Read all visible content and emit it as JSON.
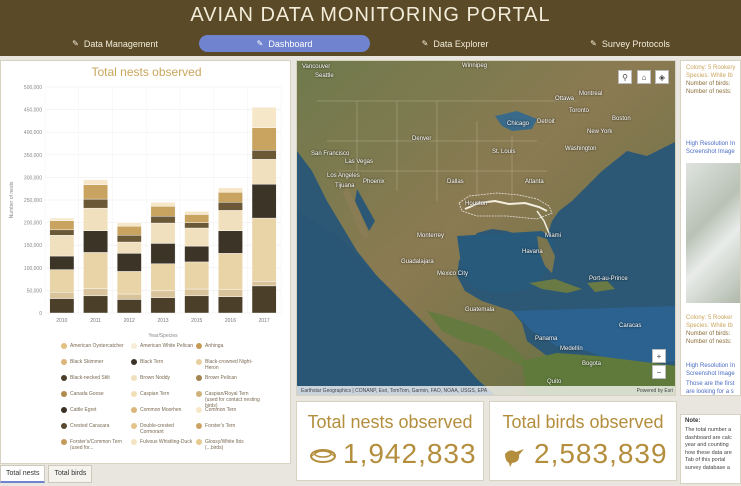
{
  "header": {
    "title": "AVIAN DATA MONITORING PORTAL",
    "nav": [
      {
        "label": "Data Management",
        "icon": "pin-icon"
      },
      {
        "label": "Dashboard",
        "icon": "pencil-icon"
      },
      {
        "label": "Data Explorer",
        "icon": "pin-icon"
      },
      {
        "label": "Survey Protocols",
        "icon": "pin-icon"
      }
    ]
  },
  "chart_data": {
    "type": "bar",
    "title": "Total nests observed",
    "xlabel": "Year/Species",
    "ylabel": "Number of nests",
    "ylim": [
      0,
      500000
    ],
    "yticks": [
      "0",
      "50,000",
      "100,000",
      "150,000",
      "200,000",
      "250,000",
      "300,000",
      "350,000",
      "400,000",
      "450,000",
      "500,000"
    ],
    "categories": [
      "2010",
      "2011",
      "2012",
      "2013",
      "2015",
      "2016",
      "2017"
    ],
    "series_colors": [
      "#4b3f2a",
      "#d8c39a",
      "#e9d4a8",
      "#3d3428",
      "#f1e0bd",
      "#6b5836",
      "#c8a460",
      "#f6e7c9"
    ],
    "series": [
      {
        "values": [
          32000,
          38000,
          30000,
          34000,
          38000,
          36000,
          60000
        ]
      },
      {
        "values": [
          14000,
          16000,
          12000,
          15000,
          15000,
          16000,
          10000
        ]
      },
      {
        "values": [
          50000,
          80000,
          50000,
          60000,
          60000,
          80000,
          140000
        ]
      },
      {
        "values": [
          30000,
          48000,
          40000,
          45000,
          35000,
          50000,
          75000
        ]
      },
      {
        "values": [
          46000,
          50000,
          25000,
          45000,
          40000,
          45000,
          55000
        ]
      },
      {
        "values": [
          12000,
          20000,
          15000,
          15000,
          12000,
          18000,
          20000
        ]
      },
      {
        "values": [
          20000,
          32000,
          20000,
          22000,
          18000,
          22000,
          50000
        ]
      },
      {
        "values": [
          6000,
          11000,
          8000,
          9000,
          7000,
          10000,
          45000
        ]
      }
    ],
    "legend": [
      {
        "label": "American Oystercatcher",
        "color": "#e2c080"
      },
      {
        "label": "American White Pelican",
        "color": "#f6ecd7"
      },
      {
        "label": "Anhinga",
        "color": "#c79a55"
      },
      {
        "label": "Black Skimmer",
        "color": "#dcb57a"
      },
      {
        "label": "Black Tern",
        "color": "#3d3428"
      },
      {
        "label": "Black-crowned Night-Heron",
        "color": "#e7cfa0"
      },
      {
        "label": "Black-necked Stilt",
        "color": "#4b3f2a"
      },
      {
        "label": "Brown Noddy",
        "color": "#f1e0bd"
      },
      {
        "label": "Brown Pelican",
        "color": "#a3844f"
      },
      {
        "label": "Canada Goose",
        "color": "#b08a4c"
      },
      {
        "label": "Caspian Tern",
        "color": "#f3dfb6"
      },
      {
        "label": "Caspian/Royal Tern (used for contact nesting birds)",
        "color": "#cfb07a"
      },
      {
        "label": "Cattle Egret",
        "color": "#3b3126"
      },
      {
        "label": "Common Moorhen",
        "color": "#d9b77c"
      },
      {
        "label": "Common Tern",
        "color": "#f6e7c9"
      },
      {
        "label": "Crested Caracara",
        "color": "#5a4a2f"
      },
      {
        "label": "Double-crested Cormorant",
        "color": "#e4c48a"
      },
      {
        "label": "Forster's Tern",
        "color": "#cda365"
      },
      {
        "label": "Forster's/Common Tern (used for...",
        "color": "#c29a5c"
      },
      {
        "label": "Fulvous Whistling-Duck",
        "color": "#f4e3c0"
      },
      {
        "label": "Glossy/White Ibis (...birds)",
        "color": "#e6c98f"
      }
    ]
  },
  "map": {
    "labels": [
      {
        "text": "Seattle"
      },
      {
        "text": "Vancouver"
      },
      {
        "text": "Winnipeg"
      },
      {
        "text": "Ottawa"
      },
      {
        "text": "Toronto"
      },
      {
        "text": "Montreal"
      },
      {
        "text": "New York"
      },
      {
        "text": "Boston"
      },
      {
        "text": "Chicago"
      },
      {
        "text": "Detroit"
      },
      {
        "text": "Denver"
      },
      {
        "text": "St. Louis"
      },
      {
        "text": "San Francisco"
      },
      {
        "text": "Las Vegas"
      },
      {
        "text": "Los Angeles"
      },
      {
        "text": "Phoenix"
      },
      {
        "text": "Dallas"
      },
      {
        "text": "Houston"
      },
      {
        "text": "Atlanta"
      },
      {
        "text": "Washington"
      },
      {
        "text": "Miami"
      },
      {
        "text": "Havana"
      },
      {
        "text": "Monterrey"
      },
      {
        "text": "Mexico City"
      },
      {
        "text": "Guatemala"
      },
      {
        "text": "Port-au-Prince"
      },
      {
        "text": "Caracas"
      },
      {
        "text": "Bogota"
      },
      {
        "text": "Medellín"
      },
      {
        "text": "Panama"
      },
      {
        "text": "Tijuana"
      },
      {
        "text": "Guadalajara"
      },
      {
        "text": "Quito"
      }
    ],
    "attribution": "Earthstar Geographics | CONANP, Esri, TomTom, Garmin, FAO, NOAA, USGS, EPA",
    "powered": "Powered by Esri",
    "zoom_in": "+",
    "zoom_out": "−"
  },
  "stats": {
    "nests": {
      "title": "Total nests observed",
      "value": "1,942,833"
    },
    "birds": {
      "title": "Total birds observed",
      "value": "2,583,839"
    }
  },
  "side": {
    "lines": [
      {
        "text": "Colony: 5 Rookery",
        "color": "#c9a55b"
      },
      {
        "text": "Species: White Ib",
        "color": "#c9a55b"
      },
      {
        "text": "Number of birds:",
        "color": "#8a6d3a"
      },
      {
        "text": "Number of nests:",
        "color": "#8a6d3a"
      },
      {
        "text": "High Resolution In",
        "color": "#4a6cc4"
      },
      {
        "text": "Screenshot Image",
        "color": "#4a6cc4"
      },
      {
        "text": "Colony: 5 Rooker",
        "color": "#c9a55b"
      },
      {
        "text": "Species: White Ib",
        "color": "#c9a55b"
      },
      {
        "text": "Number of birds:",
        "color": "#8a6d3a"
      },
      {
        "text": "Number of nests:",
        "color": "#8a6d3a"
      },
      {
        "text": "High Resolution In",
        "color": "#4a6cc4"
      },
      {
        "text": "Screenshot Image",
        "color": "#4a6cc4"
      },
      {
        "text": "Those are the first",
        "color": "#4a6cc4"
      },
      {
        "text": "are looking for a s",
        "color": "#4a6cc4"
      }
    ],
    "note_title": "Note:",
    "note_lines": [
      "The total number a",
      "dashboard are calc",
      "year and counting",
      "how these data are",
      "Tab of this portal",
      "survey database a"
    ]
  },
  "tabs": [
    "Total nests",
    "Total birds"
  ]
}
